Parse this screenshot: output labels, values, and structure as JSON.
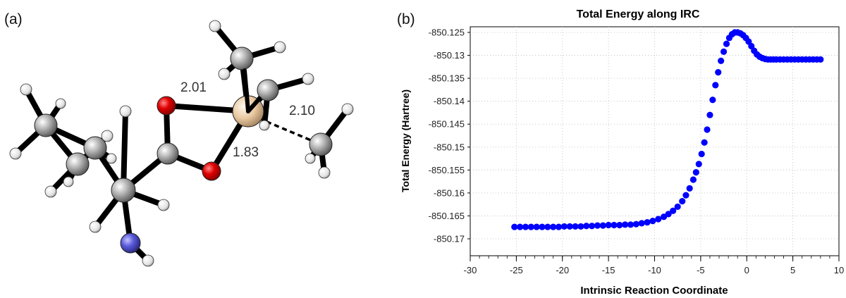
{
  "panel_a": {
    "label": "(a)",
    "bond_labels": [
      "2.01",
      "1.83",
      "2.10"
    ],
    "atom_colors": {
      "carbon": "#8c8c8c",
      "hydrogen": "#eeeeee",
      "oxygen": "#dd0000",
      "nitrogen": "#5a5adc",
      "metal": "#e8c8a0",
      "bond": "#000000"
    }
  },
  "panel_b": {
    "label": "(b)"
  },
  "chart_data": {
    "type": "scatter",
    "title": "Total Energy along IRC",
    "xlabel": "Intrinsic Reaction Coordinate",
    "ylabel": "Total Energy (Hartree)",
    "xlim": [
      -30,
      10
    ],
    "ylim": [
      -850.17,
      -850.125
    ],
    "xticks": [
      -30,
      -25,
      -20,
      -15,
      -10,
      -5,
      0,
      5,
      10
    ],
    "xtick_labels": [
      "-30",
      "-25",
      "-20",
      "-15",
      "-10",
      "-5",
      "0",
      "5",
      "10"
    ],
    "yticks": [
      -850.125,
      -850.13,
      -850.135,
      -850.14,
      -850.145,
      -850.15,
      -850.155,
      -850.16,
      -850.165,
      -850.17
    ],
    "ytick_labels": [
      "-850.125",
      "-850.13",
      "-850.135",
      "-850.14",
      "-850.145",
      "-850.15",
      "-850.155",
      "-850.16",
      "-850.165",
      "-850.17"
    ],
    "grid": true,
    "marker_color": "#0000ff",
    "series": [
      {
        "x": [
          -25.2,
          -24.6,
          -24.0,
          -23.4,
          -22.8,
          -22.2,
          -21.6,
          -21.0,
          -20.4,
          -19.8,
          -19.2,
          -18.6,
          -18.0,
          -17.4,
          -16.8,
          -16.2,
          -15.6,
          -15.0,
          -14.4,
          -13.8,
          -13.2,
          -12.6,
          -12.0,
          -11.4,
          -10.8,
          -10.2,
          -9.6,
          -9.0,
          -8.5,
          -8.0,
          -7.5,
          -7.0,
          -6.6,
          -6.2,
          -5.8,
          -5.5,
          -5.2,
          -4.9,
          -4.6,
          -4.3,
          -4.0,
          -3.7,
          -3.4,
          -3.1,
          -2.8,
          -2.5,
          -2.2,
          -1.9,
          -1.6,
          -1.3,
          -1.0,
          -0.7,
          -0.4,
          -0.1,
          0.2,
          0.5,
          0.8,
          1.1,
          1.4,
          1.7,
          2.0,
          2.3,
          2.6,
          2.9,
          3.2,
          3.6,
          4.0,
          4.4,
          4.8,
          5.2,
          5.6,
          6.0,
          6.4,
          6.8,
          7.2,
          7.6,
          8.0
        ],
        "y": [
          -850.1674,
          -850.1674,
          -850.1674,
          -850.1674,
          -850.1674,
          -850.1674,
          -850.1674,
          -850.1674,
          -850.1674,
          -850.1673,
          -850.1673,
          -850.1673,
          -850.1673,
          -850.1672,
          -850.1672,
          -850.1671,
          -850.1671,
          -850.167,
          -850.167,
          -850.167,
          -850.1669,
          -850.1669,
          -850.1668,
          -850.1666,
          -850.1664,
          -850.1661,
          -850.1657,
          -850.1652,
          -850.1646,
          -850.1639,
          -850.163,
          -850.1618,
          -850.1605,
          -850.159,
          -850.1571,
          -850.1555,
          -850.1537,
          -850.1515,
          -850.149,
          -850.1462,
          -850.143,
          -850.1397,
          -850.1365,
          -850.1337,
          -850.1312,
          -850.1292,
          -850.1275,
          -850.1262,
          -850.1254,
          -850.125,
          -850.125,
          -850.1252,
          -850.1256,
          -850.1262,
          -850.127,
          -850.128,
          -850.129,
          -850.1298,
          -850.1303,
          -850.1306,
          -850.1308,
          -850.1309,
          -850.1309,
          -850.1309,
          -850.1309,
          -850.1309,
          -850.1309,
          -850.1309,
          -850.1309,
          -850.1309,
          -850.1309,
          -850.1309,
          -850.1309,
          -850.1309,
          -850.1309,
          -850.1309,
          -850.1309
        ]
      }
    ]
  }
}
